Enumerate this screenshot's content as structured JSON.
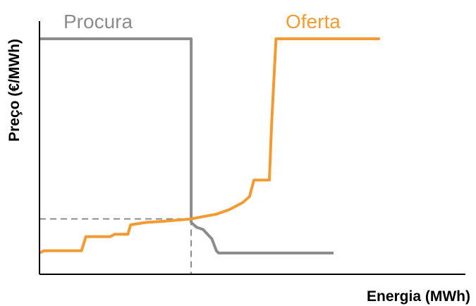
{
  "chart_data": {
    "type": "line",
    "title": "",
    "xlabel": "Energia (MWh)",
    "ylabel": "Preço (€/MWh)",
    "xlim": [
      0,
      100
    ],
    "ylim": [
      0,
      100
    ],
    "grid": false,
    "legend": "inline labels at top of each curve",
    "series": [
      {
        "name": "Procura",
        "color": "#8c8c8c",
        "style": "step",
        "points": [
          [
            0,
            100
          ],
          [
            34.3,
            100
          ],
          [
            34.3,
            22
          ],
          [
            35.5,
            20
          ],
          [
            37,
            19
          ],
          [
            38,
            17
          ],
          [
            39,
            15
          ],
          [
            40,
            10
          ],
          [
            40.5,
            9
          ],
          [
            66.5,
            9
          ]
        ]
      },
      {
        "name": "Oferta",
        "color": "#f39a30",
        "style": "step",
        "points": [
          [
            0,
            9
          ],
          [
            1,
            10
          ],
          [
            9.5,
            10
          ],
          [
            10.5,
            16
          ],
          [
            16,
            16
          ],
          [
            17,
            17
          ],
          [
            20,
            17
          ],
          [
            20.6,
            21
          ],
          [
            24,
            22
          ],
          [
            28,
            22.5
          ],
          [
            34.3,
            23.5
          ],
          [
            37,
            24.5
          ],
          [
            40,
            25.5
          ],
          [
            43,
            27.5
          ],
          [
            46,
            30.5
          ],
          [
            47.5,
            33
          ],
          [
            48.5,
            40
          ],
          [
            52,
            40
          ],
          [
            52.5,
            64
          ],
          [
            53,
            82
          ],
          [
            53.5,
            100
          ],
          [
            77,
            100
          ]
        ]
      }
    ],
    "equilibrium": {
      "x": 34.3,
      "y": 23.5,
      "guide_lines": "dashed",
      "guide_color": "#8c8c8c"
    }
  }
}
